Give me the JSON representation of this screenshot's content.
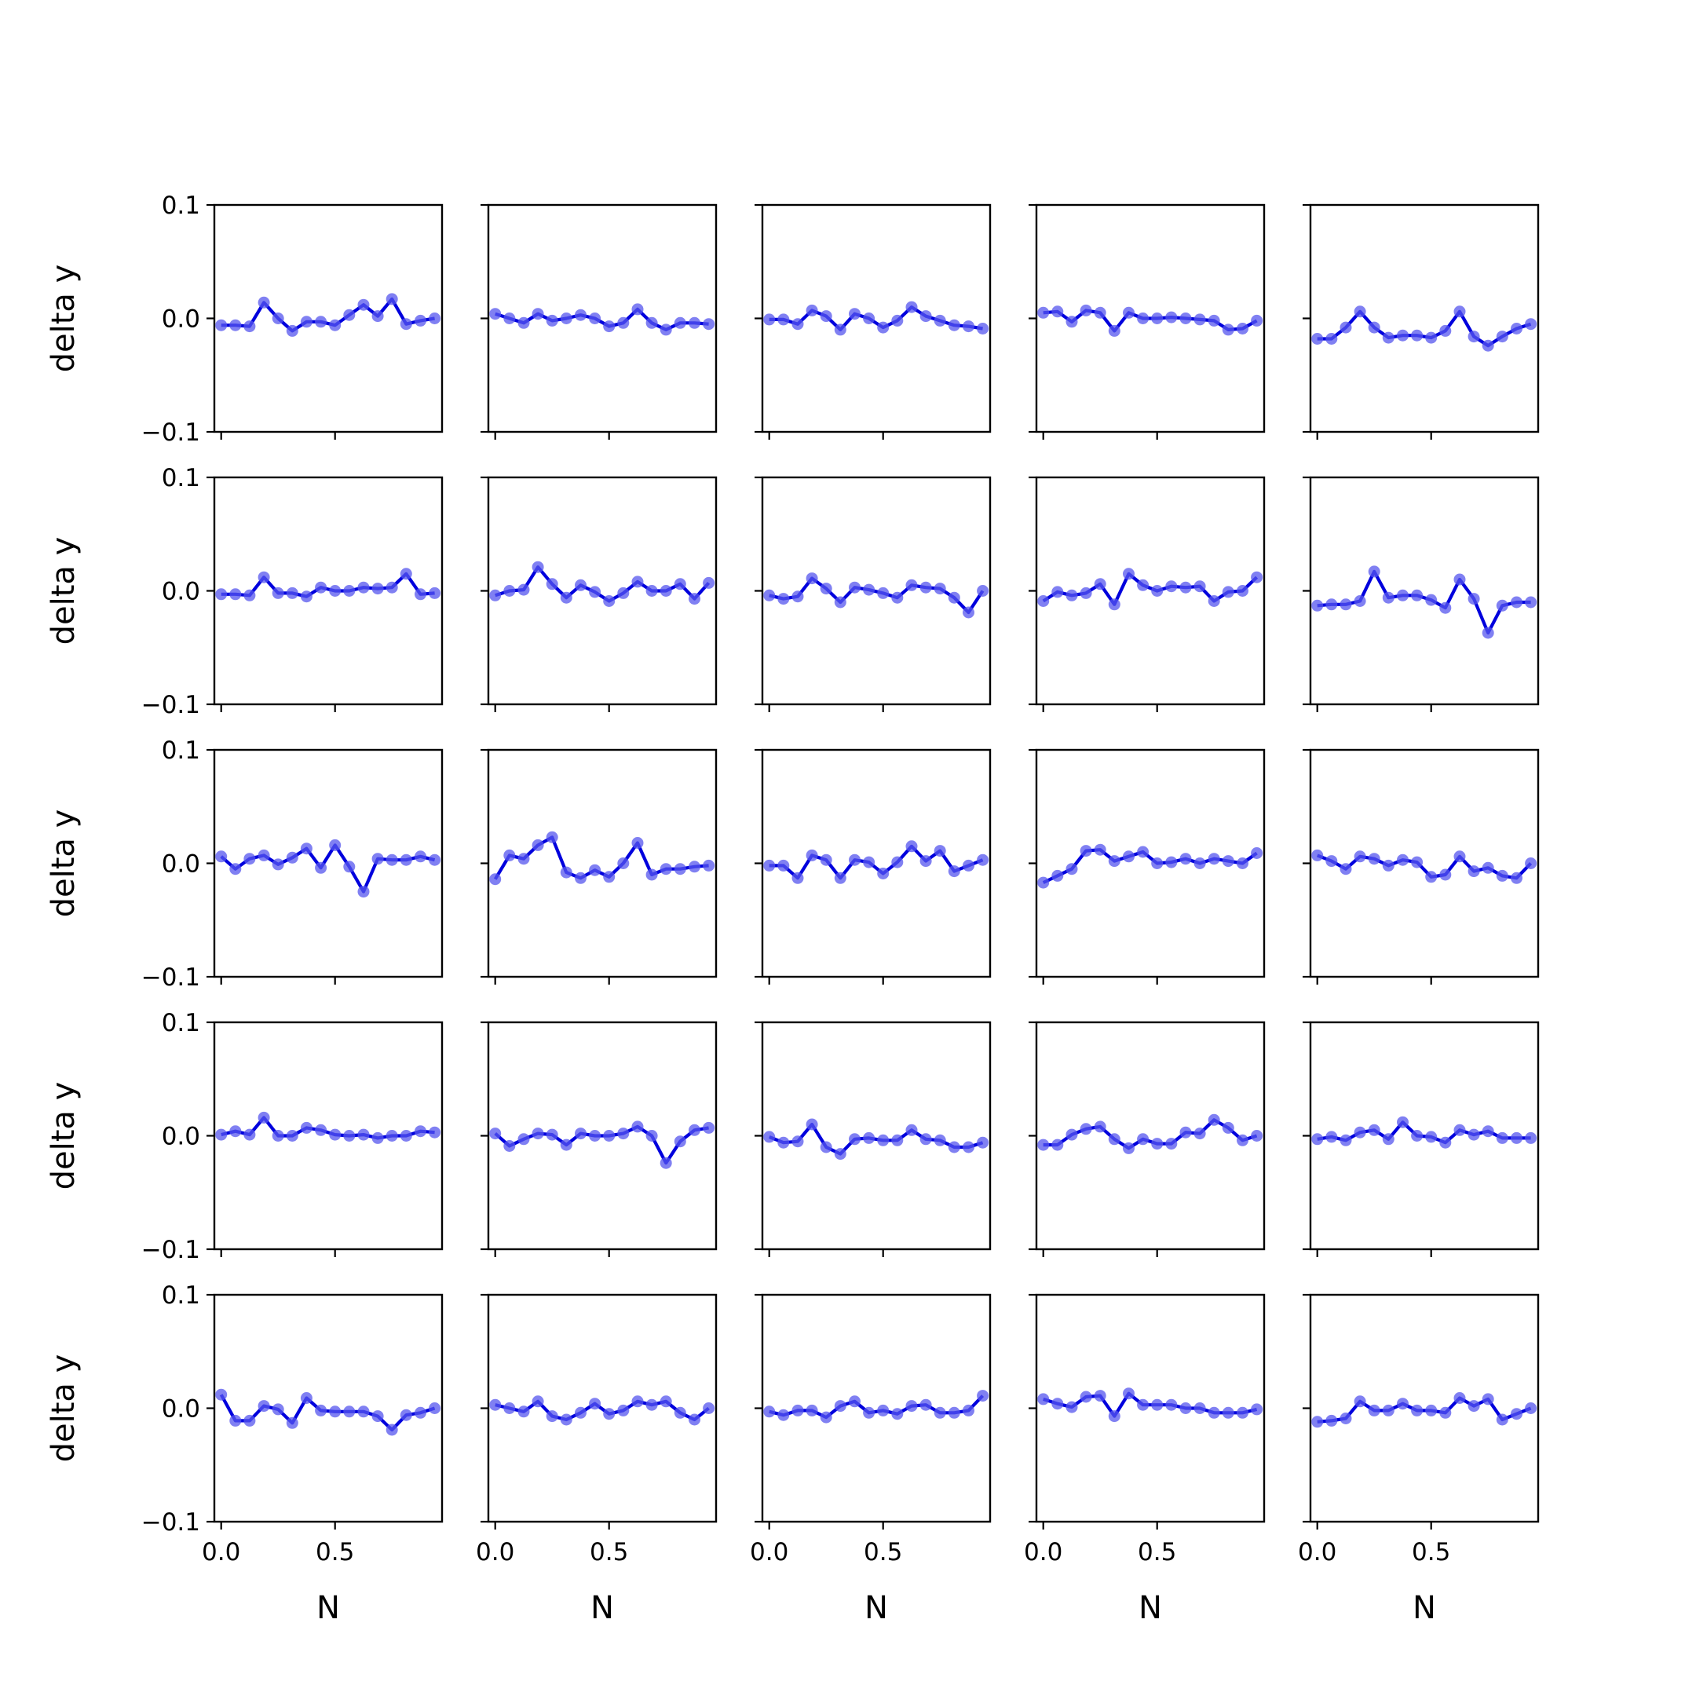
{
  "figure": {
    "rows": 5,
    "cols": 5,
    "line_color": "#0000dd",
    "marker_color": "#5555ee",
    "ylabel": "delta y",
    "xlabel": "N",
    "ylim": [
      -0.1,
      0.1
    ],
    "yticks": [
      -0.1,
      0.0,
      0.1
    ],
    "ytick_labels": [
      "−0.1",
      "0.0",
      "0.1"
    ],
    "xticks": [
      0.0,
      0.5
    ],
    "xtick_labels": [
      "0.0",
      "0.5"
    ],
    "xlim": [
      -0.03,
      0.97
    ]
  },
  "chart_data": [
    {
      "type": "line",
      "x": [
        0,
        0.0625,
        0.125,
        0.1875,
        0.25,
        0.3125,
        0.375,
        0.4375,
        0.5,
        0.5625,
        0.625,
        0.6875,
        0.75,
        0.8125,
        0.875,
        0.9375
      ],
      "values": [
        -0.006,
        -0.006,
        -0.007,
        0.014,
        0.0,
        -0.011,
        -0.003,
        -0.003,
        -0.006,
        0.003,
        0.012,
        0.002,
        0.017,
        -0.005,
        -0.002,
        0.0
      ],
      "ylim": [
        -0.1,
        0.1
      ]
    },
    {
      "type": "line",
      "x": [
        0,
        0.0625,
        0.125,
        0.1875,
        0.25,
        0.3125,
        0.375,
        0.4375,
        0.5,
        0.5625,
        0.625,
        0.6875,
        0.75,
        0.8125,
        0.875,
        0.9375
      ],
      "values": [
        0.004,
        0.0,
        -0.004,
        0.004,
        -0.002,
        0.0,
        0.003,
        0.0,
        -0.007,
        -0.004,
        0.008,
        -0.004,
        -0.01,
        -0.004,
        -0.004,
        -0.005
      ],
      "ylim": [
        -0.1,
        0.1
      ]
    },
    {
      "type": "line",
      "x": [
        0,
        0.0625,
        0.125,
        0.1875,
        0.25,
        0.3125,
        0.375,
        0.4375,
        0.5,
        0.5625,
        0.625,
        0.6875,
        0.75,
        0.8125,
        0.875,
        0.9375
      ],
      "values": [
        -0.001,
        -0.001,
        -0.005,
        0.007,
        0.002,
        -0.01,
        0.004,
        0.0,
        -0.008,
        -0.002,
        0.01,
        0.002,
        -0.002,
        -0.006,
        -0.007,
        -0.009
      ],
      "ylim": [
        -0.1,
        0.1
      ]
    },
    {
      "type": "line",
      "x": [
        0,
        0.0625,
        0.125,
        0.1875,
        0.25,
        0.3125,
        0.375,
        0.4375,
        0.5,
        0.5625,
        0.625,
        0.6875,
        0.75,
        0.8125,
        0.875,
        0.9375
      ],
      "values": [
        0.005,
        0.006,
        -0.003,
        0.007,
        0.005,
        -0.011,
        0.005,
        0.0,
        0.0,
        0.001,
        0.0,
        -0.001,
        -0.002,
        -0.01,
        -0.009,
        -0.002
      ],
      "ylim": [
        -0.1,
        0.1
      ]
    },
    {
      "type": "line",
      "x": [
        0,
        0.0625,
        0.125,
        0.1875,
        0.25,
        0.3125,
        0.375,
        0.4375,
        0.5,
        0.5625,
        0.625,
        0.6875,
        0.75,
        0.8125,
        0.875,
        0.9375
      ],
      "values": [
        -0.018,
        -0.018,
        -0.008,
        0.006,
        -0.008,
        -0.017,
        -0.015,
        -0.015,
        -0.017,
        -0.011,
        0.006,
        -0.016,
        -0.024,
        -0.016,
        -0.009,
        -0.005
      ],
      "ylim": [
        -0.1,
        0.1
      ]
    },
    {
      "type": "line",
      "x": [
        0,
        0.0625,
        0.125,
        0.1875,
        0.25,
        0.3125,
        0.375,
        0.4375,
        0.5,
        0.5625,
        0.625,
        0.6875,
        0.75,
        0.8125,
        0.875,
        0.9375
      ],
      "values": [
        -0.003,
        -0.003,
        -0.004,
        0.012,
        -0.002,
        -0.002,
        -0.005,
        0.003,
        0.0,
        0.0,
        0.003,
        0.002,
        0.003,
        0.015,
        -0.003,
        -0.002
      ],
      "ylim": [
        -0.1,
        0.1
      ]
    },
    {
      "type": "line",
      "x": [
        0,
        0.0625,
        0.125,
        0.1875,
        0.25,
        0.3125,
        0.375,
        0.4375,
        0.5,
        0.5625,
        0.625,
        0.6875,
        0.75,
        0.8125,
        0.875,
        0.9375
      ],
      "values": [
        -0.004,
        0.0,
        0.001,
        0.021,
        0.006,
        -0.006,
        0.005,
        -0.001,
        -0.009,
        -0.002,
        0.008,
        0.0,
        0.0,
        0.006,
        -0.007,
        0.007
      ],
      "ylim": [
        -0.1,
        0.1
      ]
    },
    {
      "type": "line",
      "x": [
        0,
        0.0625,
        0.125,
        0.1875,
        0.25,
        0.3125,
        0.375,
        0.4375,
        0.5,
        0.5625,
        0.625,
        0.6875,
        0.75,
        0.8125,
        0.875,
        0.9375
      ],
      "values": [
        -0.004,
        -0.007,
        -0.005,
        0.011,
        0.002,
        -0.01,
        0.003,
        0.001,
        -0.002,
        -0.006,
        0.005,
        0.003,
        0.002,
        -0.006,
        -0.019,
        0.0
      ],
      "ylim": [
        -0.1,
        0.1
      ]
    },
    {
      "type": "line",
      "x": [
        0,
        0.0625,
        0.125,
        0.1875,
        0.25,
        0.3125,
        0.375,
        0.4375,
        0.5,
        0.5625,
        0.625,
        0.6875,
        0.75,
        0.8125,
        0.875,
        0.9375
      ],
      "values": [
        -0.009,
        -0.001,
        -0.004,
        -0.002,
        0.006,
        -0.012,
        0.015,
        0.005,
        0.0,
        0.004,
        0.003,
        0.004,
        -0.009,
        -0.001,
        0.0,
        0.012
      ],
      "ylim": [
        -0.1,
        0.1
      ]
    },
    {
      "type": "line",
      "x": [
        0,
        0.0625,
        0.125,
        0.1875,
        0.25,
        0.3125,
        0.375,
        0.4375,
        0.5,
        0.5625,
        0.625,
        0.6875,
        0.75,
        0.8125,
        0.875,
        0.9375
      ],
      "values": [
        -0.013,
        -0.012,
        -0.012,
        -0.009,
        0.017,
        -0.006,
        -0.004,
        -0.004,
        -0.008,
        -0.015,
        0.01,
        -0.007,
        -0.037,
        -0.013,
        -0.01,
        -0.01
      ],
      "ylim": [
        -0.1,
        0.1
      ]
    },
    {
      "type": "line",
      "x": [
        0,
        0.0625,
        0.125,
        0.1875,
        0.25,
        0.3125,
        0.375,
        0.4375,
        0.5,
        0.5625,
        0.625,
        0.6875,
        0.75,
        0.8125,
        0.875,
        0.9375
      ],
      "values": [
        0.006,
        -0.005,
        0.004,
        0.007,
        -0.001,
        0.005,
        0.013,
        -0.004,
        0.016,
        -0.003,
        -0.025,
        0.004,
        0.003,
        0.003,
        0.006,
        0.003
      ],
      "ylim": [
        -0.1,
        0.1
      ]
    },
    {
      "type": "line",
      "x": [
        0,
        0.0625,
        0.125,
        0.1875,
        0.25,
        0.3125,
        0.375,
        0.4375,
        0.5,
        0.5625,
        0.625,
        0.6875,
        0.75,
        0.8125,
        0.875,
        0.9375
      ],
      "values": [
        -0.014,
        0.007,
        0.004,
        0.016,
        0.023,
        -0.008,
        -0.013,
        -0.006,
        -0.012,
        0.0,
        0.018,
        -0.01,
        -0.005,
        -0.005,
        -0.003,
        -0.002
      ],
      "ylim": [
        -0.1,
        0.1
      ]
    },
    {
      "type": "line",
      "x": [
        0,
        0.0625,
        0.125,
        0.1875,
        0.25,
        0.3125,
        0.375,
        0.4375,
        0.5,
        0.5625,
        0.625,
        0.6875,
        0.75,
        0.8125,
        0.875,
        0.9375
      ],
      "values": [
        -0.002,
        -0.002,
        -0.013,
        0.007,
        0.003,
        -0.013,
        0.003,
        0.001,
        -0.009,
        0.001,
        0.015,
        0.002,
        0.011,
        -0.007,
        -0.002,
        0.003
      ],
      "ylim": [
        -0.1,
        0.1
      ]
    },
    {
      "type": "line",
      "x": [
        0,
        0.0625,
        0.125,
        0.1875,
        0.25,
        0.3125,
        0.375,
        0.4375,
        0.5,
        0.5625,
        0.625,
        0.6875,
        0.75,
        0.8125,
        0.875,
        0.9375
      ],
      "values": [
        -0.017,
        -0.011,
        -0.005,
        0.011,
        0.012,
        0.002,
        0.006,
        0.01,
        0.0,
        0.001,
        0.004,
        0.0,
        0.004,
        0.002,
        0.0,
        0.009
      ],
      "ylim": [
        -0.1,
        0.1
      ]
    },
    {
      "type": "line",
      "x": [
        0,
        0.0625,
        0.125,
        0.1875,
        0.25,
        0.3125,
        0.375,
        0.4375,
        0.5,
        0.5625,
        0.625,
        0.6875,
        0.75,
        0.8125,
        0.875,
        0.9375
      ],
      "values": [
        0.007,
        0.002,
        -0.005,
        0.006,
        0.004,
        -0.002,
        0.003,
        0.001,
        -0.012,
        -0.01,
        0.006,
        -0.007,
        -0.004,
        -0.011,
        -0.013,
        0.0
      ],
      "ylim": [
        -0.1,
        0.1
      ]
    },
    {
      "type": "line",
      "x": [
        0,
        0.0625,
        0.125,
        0.1875,
        0.25,
        0.3125,
        0.375,
        0.4375,
        0.5,
        0.5625,
        0.625,
        0.6875,
        0.75,
        0.8125,
        0.875,
        0.9375
      ],
      "values": [
        0.001,
        0.004,
        0.001,
        0.016,
        0.0,
        0.0,
        0.007,
        0.005,
        0.001,
        0.0,
        0.001,
        -0.002,
        0.0,
        0.0,
        0.004,
        0.003
      ],
      "ylim": [
        -0.1,
        0.1
      ]
    },
    {
      "type": "line",
      "x": [
        0,
        0.0625,
        0.125,
        0.1875,
        0.25,
        0.3125,
        0.375,
        0.4375,
        0.5,
        0.5625,
        0.625,
        0.6875,
        0.75,
        0.8125,
        0.875,
        0.9375
      ],
      "values": [
        0.002,
        -0.009,
        -0.003,
        0.002,
        0.001,
        -0.008,
        0.002,
        0.0,
        0.0,
        0.002,
        0.008,
        0.0,
        -0.024,
        -0.005,
        0.005,
        0.007
      ],
      "ylim": [
        -0.1,
        0.1
      ]
    },
    {
      "type": "line",
      "x": [
        0,
        0.0625,
        0.125,
        0.1875,
        0.25,
        0.3125,
        0.375,
        0.4375,
        0.5,
        0.5625,
        0.625,
        0.6875,
        0.75,
        0.8125,
        0.875,
        0.9375
      ],
      "values": [
        -0.001,
        -0.006,
        -0.005,
        0.01,
        -0.01,
        -0.016,
        -0.003,
        -0.002,
        -0.004,
        -0.004,
        0.005,
        -0.003,
        -0.004,
        -0.01,
        -0.01,
        -0.006
      ],
      "ylim": [
        -0.1,
        0.1
      ]
    },
    {
      "type": "line",
      "x": [
        0,
        0.0625,
        0.125,
        0.1875,
        0.25,
        0.3125,
        0.375,
        0.4375,
        0.5,
        0.5625,
        0.625,
        0.6875,
        0.75,
        0.8125,
        0.875,
        0.9375
      ],
      "values": [
        -0.008,
        -0.008,
        0.001,
        0.006,
        0.008,
        -0.003,
        -0.011,
        -0.003,
        -0.007,
        -0.007,
        0.003,
        0.002,
        0.014,
        0.007,
        -0.004,
        0.0
      ],
      "ylim": [
        -0.1,
        0.1
      ]
    },
    {
      "type": "line",
      "x": [
        0,
        0.0625,
        0.125,
        0.1875,
        0.25,
        0.3125,
        0.375,
        0.4375,
        0.5,
        0.5625,
        0.625,
        0.6875,
        0.75,
        0.8125,
        0.875,
        0.9375
      ],
      "values": [
        -0.003,
        -0.001,
        -0.004,
        0.003,
        0.005,
        -0.003,
        0.012,
        0.0,
        -0.001,
        -0.006,
        0.005,
        0.001,
        0.004,
        -0.002,
        -0.002,
        -0.002
      ],
      "ylim": [
        -0.1,
        0.1
      ]
    },
    {
      "type": "line",
      "x": [
        0,
        0.0625,
        0.125,
        0.1875,
        0.25,
        0.3125,
        0.375,
        0.4375,
        0.5,
        0.5625,
        0.625,
        0.6875,
        0.75,
        0.8125,
        0.875,
        0.9375
      ],
      "values": [
        0.012,
        -0.011,
        -0.011,
        0.002,
        -0.001,
        -0.013,
        0.009,
        -0.002,
        -0.003,
        -0.003,
        -0.003,
        -0.007,
        -0.019,
        -0.006,
        -0.004,
        0.0
      ],
      "ylim": [
        -0.1,
        0.1
      ]
    },
    {
      "type": "line",
      "x": [
        0,
        0.0625,
        0.125,
        0.1875,
        0.25,
        0.3125,
        0.375,
        0.4375,
        0.5,
        0.5625,
        0.625,
        0.6875,
        0.75,
        0.8125,
        0.875,
        0.9375
      ],
      "values": [
        0.003,
        0.0,
        -0.003,
        0.006,
        -0.007,
        -0.01,
        -0.004,
        0.004,
        -0.005,
        -0.002,
        0.006,
        0.003,
        0.006,
        -0.004,
        -0.01,
        0.0
      ],
      "ylim": [
        -0.1,
        0.1
      ]
    },
    {
      "type": "line",
      "x": [
        0,
        0.0625,
        0.125,
        0.1875,
        0.25,
        0.3125,
        0.375,
        0.4375,
        0.5,
        0.5625,
        0.625,
        0.6875,
        0.75,
        0.8125,
        0.875,
        0.9375
      ],
      "values": [
        -0.003,
        -0.006,
        -0.002,
        -0.002,
        -0.008,
        0.002,
        0.006,
        -0.004,
        -0.002,
        -0.005,
        0.002,
        0.003,
        -0.004,
        -0.004,
        -0.002,
        0.011
      ],
      "ylim": [
        -0.1,
        0.1
      ]
    },
    {
      "type": "line",
      "x": [
        0,
        0.0625,
        0.125,
        0.1875,
        0.25,
        0.3125,
        0.375,
        0.4375,
        0.5,
        0.5625,
        0.625,
        0.6875,
        0.75,
        0.8125,
        0.875,
        0.9375
      ],
      "values": [
        0.008,
        0.004,
        0.001,
        0.01,
        0.011,
        -0.007,
        0.013,
        0.003,
        0.003,
        0.003,
        0.0,
        0.0,
        -0.004,
        -0.004,
        -0.004,
        -0.001
      ],
      "ylim": [
        -0.1,
        0.1
      ]
    },
    {
      "type": "line",
      "x": [
        0,
        0.0625,
        0.125,
        0.1875,
        0.25,
        0.3125,
        0.375,
        0.4375,
        0.5,
        0.5625,
        0.625,
        0.6875,
        0.75,
        0.8125,
        0.875,
        0.9375
      ],
      "values": [
        -0.012,
        -0.011,
        -0.009,
        0.006,
        -0.002,
        -0.002,
        0.004,
        -0.002,
        -0.002,
        -0.004,
        0.009,
        0.002,
        0.008,
        -0.01,
        -0.005,
        0.0
      ],
      "ylim": [
        -0.1,
        0.1
      ]
    }
  ]
}
